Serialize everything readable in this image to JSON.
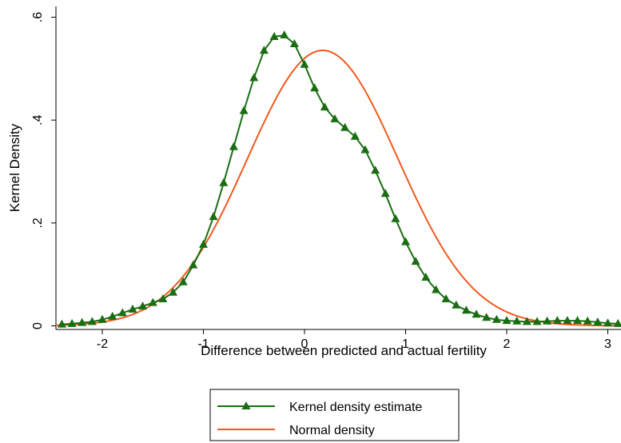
{
  "chart_data": {
    "type": "line",
    "xlabel": "Difference between predicted and actual fertility",
    "ylabel": "Kernel Density",
    "xlim": [
      -2.5,
      3.15
    ],
    "ylim": [
      0,
      0.6
    ],
    "x_ticks": [
      -2,
      -1,
      0,
      1,
      2,
      3
    ],
    "x_tick_labels": [
      "-2",
      "-1",
      "0",
      "1",
      "2",
      "3"
    ],
    "y_ticks": [
      0,
      0.2,
      0.4,
      0.6
    ],
    "y_tick_labels": [
      "0",
      ".2",
      ".4",
      ".6"
    ],
    "grid": false,
    "legend_position": "bottom",
    "series": [
      {
        "name": "Kernel density estimate",
        "color": "#1a6e12",
        "marker": "triangle",
        "x": [
          -2.4,
          -2.3,
          -2.2,
          -2.1,
          -2.0,
          -1.9,
          -1.8,
          -1.7,
          -1.6,
          -1.5,
          -1.4,
          -1.3,
          -1.2,
          -1.1,
          -1.0,
          -0.9,
          -0.8,
          -0.7,
          -0.6,
          -0.5,
          -0.4,
          -0.3,
          -0.2,
          -0.1,
          0.0,
          0.1,
          0.2,
          0.3,
          0.4,
          0.5,
          0.6,
          0.7,
          0.8,
          0.9,
          1.0,
          1.1,
          1.2,
          1.3,
          1.4,
          1.5,
          1.6,
          1.7,
          1.8,
          1.9,
          2.0,
          2.1,
          2.2,
          2.3,
          2.4,
          2.5,
          2.6,
          2.7,
          2.8,
          2.9,
          3.0,
          3.1
        ],
        "y": [
          0.003,
          0.004,
          0.006,
          0.008,
          0.012,
          0.018,
          0.025,
          0.032,
          0.038,
          0.045,
          0.052,
          0.065,
          0.085,
          0.118,
          0.158,
          0.212,
          0.278,
          0.348,
          0.418,
          0.482,
          0.535,
          0.562,
          0.565,
          0.548,
          0.508,
          0.462,
          0.425,
          0.402,
          0.385,
          0.368,
          0.342,
          0.302,
          0.257,
          0.208,
          0.163,
          0.125,
          0.094,
          0.07,
          0.052,
          0.04,
          0.03,
          0.022,
          0.016,
          0.012,
          0.01,
          0.009,
          0.008,
          0.008,
          0.009,
          0.01,
          0.01,
          0.01,
          0.009,
          0.007,
          0.005,
          0.004
        ]
      },
      {
        "name": "Normal density",
        "color": "#f05a1e",
        "marker": "none",
        "mean": 0.18,
        "sd": 0.745
      }
    ]
  }
}
